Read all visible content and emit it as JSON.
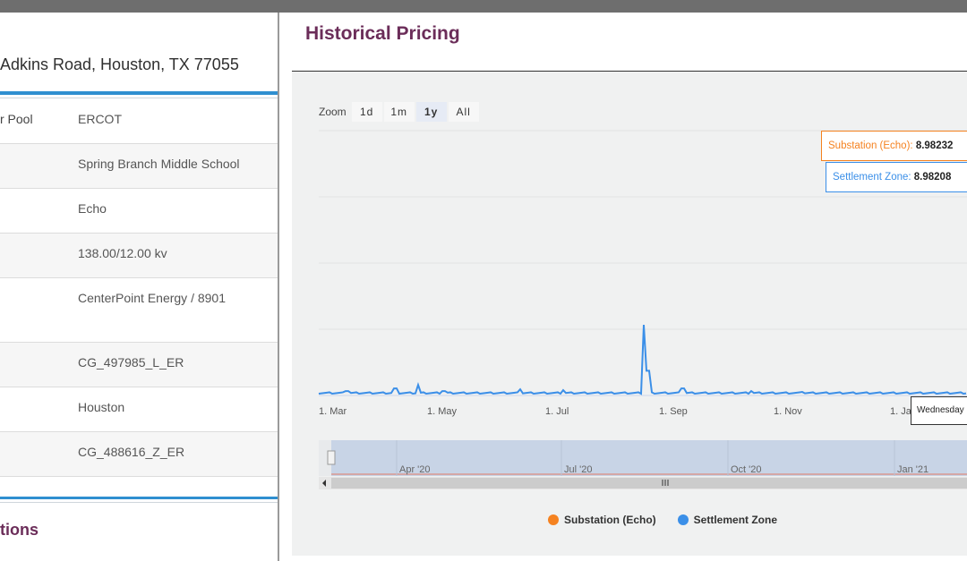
{
  "left": {
    "address": "Adkins Road, Houston, TX 77055",
    "rows": [
      {
        "key": "r Pool",
        "value": "ERCOT"
      },
      {
        "key": "",
        "value": "Spring Branch Middle School"
      },
      {
        "key": "",
        "value": "Echo"
      },
      {
        "key": "",
        "value": "138.00/12.00 kv"
      },
      {
        "key": "",
        "value": "CenterPoint Energy / 8901"
      },
      {
        "key": "",
        "value": "CG_497985_L_ER"
      },
      {
        "key": "",
        "value": "Houston"
      },
      {
        "key": "",
        "value": "CG_488616_Z_ER"
      }
    ],
    "next_section": "tions"
  },
  "right": {
    "title": "Historical Pricing",
    "zoom": {
      "label": "Zoom",
      "buttons": [
        "1d",
        "1m",
        "1y",
        "All"
      ],
      "active": "1y"
    },
    "tooltip_substation": {
      "label": "Substation (Echo):",
      "value": "8.98232"
    },
    "tooltip_settlement": {
      "label": "Settlement Zone:",
      "value": "8.98208"
    },
    "date_tooltip": "Wednesday",
    "legend": [
      {
        "name": "Substation (Echo)",
        "color": "#f58220"
      },
      {
        "name": "Settlement Zone",
        "color": "#3b8fe8"
      }
    ],
    "colors": {
      "substation": "#f58220",
      "settlement": "#3b8fe8",
      "accent": "#6b2d59",
      "rule": "#2f8fd0"
    }
  },
  "chart_data": {
    "type": "line",
    "x_ticks": [
      "1. Mar",
      "1. May",
      "1. Jul",
      "1. Sep",
      "1. Nov",
      "1. Ja"
    ],
    "navigator_ticks": [
      "Apr '20",
      "Jul '20",
      "Oct '20",
      "Jan '21"
    ],
    "series": [
      {
        "name": "Substation (Echo)",
        "last_value": 8.98232
      },
      {
        "name": "Settlement Zone",
        "last_value": 8.98208
      }
    ],
    "ylim": [
      0,
      300
    ],
    "grid": true,
    "spikes_by_month": [
      {
        "month": "Mar",
        "value": 5
      },
      {
        "month": "Apr",
        "value": 8
      },
      {
        "month": "Apr",
        "value": 12
      },
      {
        "month": "May",
        "value": 5
      },
      {
        "month": "Jun",
        "value": 7
      },
      {
        "month": "Jul",
        "value": 6
      },
      {
        "month": "Aug",
        "value": 80
      },
      {
        "month": "Aug",
        "value": 28
      },
      {
        "month": "Sep",
        "value": 8
      },
      {
        "month": "Oct",
        "value": 5
      },
      {
        "month": "Nov",
        "value": 4
      }
    ],
    "legend_position": "bottom"
  }
}
